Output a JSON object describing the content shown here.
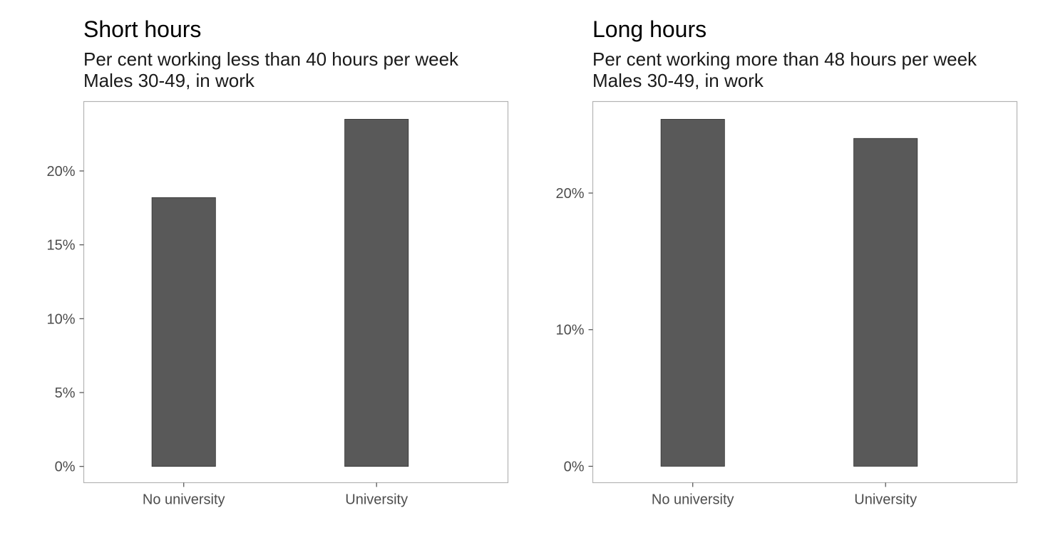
{
  "chart_data": [
    {
      "type": "bar",
      "title": "Short hours",
      "subtitle": [
        "Per cent working less than 40 hours per week",
        "Males 30-49, in work"
      ],
      "xlabel": "",
      "ylabel": "",
      "categories": [
        "No university",
        "University"
      ],
      "values": [
        18.2,
        23.5
      ],
      "ylim": [
        -1.1,
        24.7
      ],
      "yticks": [
        0,
        5,
        10,
        15,
        20
      ],
      "ytick_labels": [
        "0%",
        "5%",
        "10%",
        "15%",
        "20%"
      ],
      "grid": false
    },
    {
      "type": "bar",
      "title": "Long hours",
      "subtitle": [
        "Per cent working more than 48 hours per week",
        "Males 30-49, in work"
      ],
      "xlabel": "",
      "ylabel": "",
      "categories": [
        "No university",
        "University"
      ],
      "values": [
        25.4,
        24.0
      ],
      "ylim": [
        -1.2,
        26.7
      ],
      "yticks": [
        0,
        10,
        20
      ],
      "ytick_labels": [
        "0%",
        "10%",
        "20%"
      ],
      "grid": false
    }
  ],
  "colors": {
    "bar_fill": "#595959",
    "bar_stroke": "#333333",
    "panel_border": "#b3b3b3",
    "tick": "#4d4d4d"
  }
}
